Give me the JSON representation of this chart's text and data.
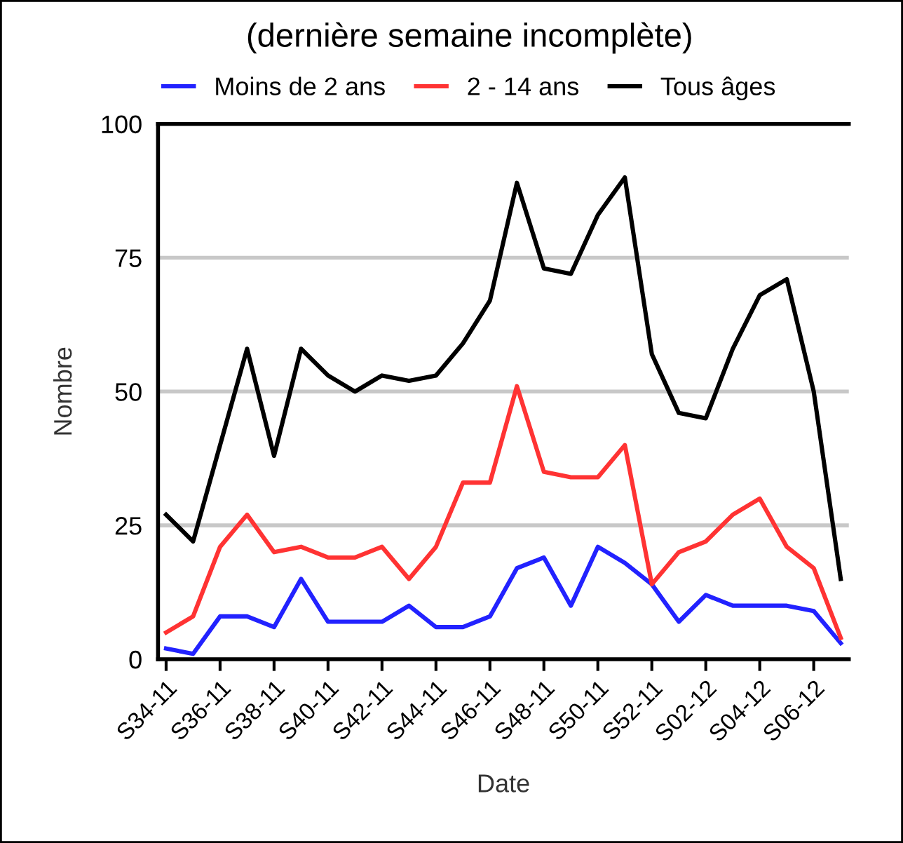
{
  "chart_data": {
    "type": "line",
    "title": "(dernière semaine incomplète)",
    "xlabel": "Date",
    "ylabel": "Nombre",
    "categories": [
      "S34-11",
      null,
      "S36-11",
      null,
      "S38-11",
      null,
      "S40-11",
      null,
      "S42-11",
      null,
      "S44-11",
      null,
      "S46-11",
      null,
      "S48-11",
      null,
      "S50-11",
      null,
      "S52-11",
      null,
      "S02-12",
      null,
      "S04-12",
      null,
      "S06-12",
      null
    ],
    "series": [
      {
        "name": "Moins de 2 ans",
        "color": "#2222ff",
        "values": [
          2,
          1,
          8,
          8,
          6,
          15,
          7,
          7,
          7,
          10,
          6,
          6,
          8,
          17,
          19,
          10,
          21,
          18,
          14,
          7,
          12,
          10,
          10,
          10,
          9,
          3
        ]
      },
      {
        "name": "2 - 14 ans",
        "color": "#ff3333",
        "values": [
          5,
          8,
          21,
          27,
          20,
          21,
          19,
          19,
          21,
          15,
          21,
          33,
          33,
          51,
          35,
          34,
          34,
          40,
          14,
          20,
          22,
          27,
          30,
          21,
          17,
          4
        ]
      },
      {
        "name": "Tous âges",
        "color": "#000000",
        "values": [
          27,
          22,
          40,
          58,
          38,
          58,
          53,
          50,
          53,
          52,
          53,
          59,
          67,
          89,
          73,
          72,
          83,
          90,
          57,
          46,
          45,
          58,
          68,
          71,
          50,
          15
        ]
      }
    ],
    "ylim": [
      0,
      100
    ],
    "yticks": [
      0,
      25,
      50,
      75,
      100
    ],
    "grid": "y",
    "legend": "top",
    "marker": "none",
    "line_style": "solid"
  }
}
